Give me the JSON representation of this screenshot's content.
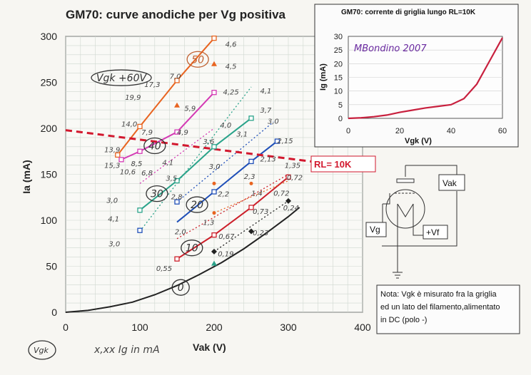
{
  "chart_data": [
    {
      "type": "line",
      "title": "GM70: curve anodiche per Vg positiva",
      "xlabel": "Vak (V)",
      "ylabel": "Ia (mA)",
      "xlim": [
        0,
        400
      ],
      "ylim": [
        0,
        300
      ],
      "x_ticks": [
        "0",
        "100",
        "200",
        "300",
        "400"
      ],
      "y_ticks": [
        "0",
        "50",
        "100",
        "150",
        "200",
        "250",
        "300"
      ],
      "grid": true,
      "series": [
        {
          "name": "0",
          "color": "#222222",
          "style": "solid",
          "x": [
            0,
            30,
            60,
            90,
            120,
            150,
            180,
            210,
            240,
            270,
            300,
            315
          ],
          "y": [
            0,
            2,
            6,
            11,
            19,
            29,
            41,
            54,
            69,
            86,
            104,
            114
          ]
        },
        {
          "name": "10",
          "color": "#cc1f2a",
          "style": "solid",
          "x": [
            150,
            200,
            250,
            300
          ],
          "y": [
            58,
            84,
            114,
            147
          ]
        },
        {
          "name": "20",
          "color": "#1f4fb8",
          "style": "solid",
          "x": [
            150,
            200,
            250,
            285
          ],
          "y": [
            98,
            131,
            164,
            186
          ]
        },
        {
          "name": "30",
          "color": "#2aa38a",
          "style": "solid",
          "x": [
            100,
            150,
            200,
            250
          ],
          "y": [
            111,
            143,
            180,
            211
          ]
        },
        {
          "name": "40",
          "color": "#d43ab4",
          "style": "solid",
          "x": [
            75,
            100,
            150,
            200
          ],
          "y": [
            166,
            175,
            196,
            239
          ]
        },
        {
          "name": "50",
          "color": "#e86420",
          "style": "solid",
          "x": [
            70,
            100,
            150,
            200
          ],
          "y": [
            171,
            202,
            252,
            298
          ]
        },
        {
          "name": "",
          "color": "#2aa38a",
          "style": "dotted",
          "x": [
            100,
            250
          ],
          "y": [
            88,
            245
          ]
        },
        {
          "name": "",
          "color": "#1f4fb8",
          "style": "dotted",
          "x": [
            150,
            280
          ],
          "y": [
            120,
            207
          ]
        },
        {
          "name": "",
          "color": "#cc1f2a",
          "style": "dotted",
          "x": [
            150,
            300
          ],
          "y": [
            80,
            150
          ]
        },
        {
          "name": "",
          "color": "#222222",
          "style": "dotted",
          "x": [
            200,
            300
          ],
          "y": [
            66,
            121
          ]
        },
        {
          "name": "",
          "color": "#d43ab4",
          "style": "dotted",
          "x": [
            100,
            200
          ],
          "y": [
            140,
            200
          ]
        },
        {
          "name": "",
          "color": "#e86420",
          "style": "dotted",
          "x": [
            200,
            300
          ],
          "y": [
            108,
            143
          ]
        }
      ],
      "load_line": {
        "label": "RL= 10K",
        "color": "#d2182e",
        "x": [
          0,
          340
        ],
        "y": [
          198,
          163
        ]
      },
      "markers": [
        {
          "color": "#e86420",
          "shape": "square",
          "x": [
            70,
            100,
            150,
            200
          ],
          "y": [
            171,
            202,
            252,
            298
          ]
        },
        {
          "color": "#d43ab4",
          "shape": "square",
          "x": [
            75,
            100,
            150,
            200
          ],
          "y": [
            166,
            175,
            196,
            239
          ]
        },
        {
          "color": "#2aa38a",
          "shape": "square",
          "x": [
            100,
            150,
            200,
            250
          ],
          "y": [
            111,
            143,
            180,
            211
          ]
        },
        {
          "color": "#1f4fb8",
          "shape": "square",
          "x": [
            100,
            150,
            200,
            250,
            285
          ],
          "y": [
            89,
            120,
            131,
            164,
            186
          ]
        },
        {
          "color": "#cc1f2a",
          "shape": "square",
          "x": [
            150,
            200,
            250,
            300
          ],
          "y": [
            58,
            84,
            114,
            147
          ]
        },
        {
          "color": "#222222",
          "shape": "diamond",
          "x": [
            200,
            250,
            300
          ],
          "y": [
            66,
            88,
            121
          ]
        },
        {
          "color": "#e86420",
          "shape": "triangle",
          "x": [
            200,
            150
          ],
          "y": [
            270,
            225
          ]
        },
        {
          "color": "#2aa38a",
          "shape": "triangle",
          "x": [
            200
          ],
          "y": [
            53
          ]
        },
        {
          "color": "#e86420",
          "shape": "circle",
          "x": [
            200,
            200,
            250
          ],
          "y": [
            108,
            140,
            140
          ]
        }
      ],
      "annotations": [
        {
          "text": "50",
          "x": 178,
          "y": 275,
          "circled": true,
          "color": "#c06030"
        },
        {
          "text": "40",
          "x": 120,
          "y": 181,
          "circled": true,
          "color": "#333"
        },
        {
          "text": "30",
          "x": 123,
          "y": 129,
          "circled": true,
          "color": "#333"
        },
        {
          "text": "20",
          "x": 177,
          "y": 117,
          "circled": true,
          "color": "#333"
        },
        {
          "text": "10",
          "x": 170,
          "y": 70,
          "circled": true,
          "color": "#333"
        },
        {
          "text": "0",
          "x": 155,
          "y": 27,
          "circled": true,
          "color": "#333"
        },
        {
          "text": "Vgk +60V",
          "x": 75,
          "y": 255,
          "circled": true,
          "color": "#333"
        },
        {
          "text": "4,6",
          "x": 215,
          "y": 292,
          "circled": false,
          "color": "#444"
        },
        {
          "text": "4,5",
          "x": 215,
          "y": 268,
          "circled": false,
          "color": "#444"
        },
        {
          "text": "7,0",
          "x": 140,
          "y": 257,
          "circled": false,
          "color": "#444"
        },
        {
          "text": "17,3",
          "x": 106,
          "y": 248,
          "circled": false,
          "color": "#444"
        },
        {
          "text": "19,9",
          "x": 80,
          "y": 234,
          "circled": false,
          "color": "#444"
        },
        {
          "text": "5,9",
          "x": 160,
          "y": 222,
          "circled": false,
          "color": "#444"
        },
        {
          "text": "4,25",
          "x": 212,
          "y": 240,
          "circled": false,
          "color": "#444"
        },
        {
          "text": "4,1",
          "x": 262,
          "y": 241,
          "circled": false,
          "color": "#444"
        },
        {
          "text": "3,7",
          "x": 262,
          "y": 220,
          "circled": false,
          "color": "#444"
        },
        {
          "text": "14,0",
          "x": 75,
          "y": 205,
          "circled": false,
          "color": "#444"
        },
        {
          "text": "7,9",
          "x": 102,
          "y": 196,
          "circled": false,
          "color": "#444"
        },
        {
          "text": "4,9",
          "x": 150,
          "y": 196,
          "circled": false,
          "color": "#444"
        },
        {
          "text": "4,0",
          "x": 208,
          "y": 204,
          "circled": false,
          "color": "#444"
        },
        {
          "text": "3,6",
          "x": 185,
          "y": 186,
          "circled": false,
          "color": "#444"
        },
        {
          "text": "3,1",
          "x": 230,
          "y": 194,
          "circled": false,
          "color": "#444"
        },
        {
          "text": "3,0",
          "x": 272,
          "y": 208,
          "circled": false,
          "color": "#444"
        },
        {
          "text": "13,9",
          "x": 52,
          "y": 177,
          "circled": false,
          "color": "#444"
        },
        {
          "text": "15,3",
          "x": 52,
          "y": 160,
          "circled": false,
          "color": "#444"
        },
        {
          "text": "8,5",
          "x": 88,
          "y": 162,
          "circled": false,
          "color": "#444"
        },
        {
          "text": "6,8",
          "x": 102,
          "y": 152,
          "circled": false,
          "color": "#444"
        },
        {
          "text": "10,6",
          "x": 73,
          "y": 153,
          "circled": false,
          "color": "#444"
        },
        {
          "text": "4,1",
          "x": 130,
          "y": 163,
          "circled": false,
          "color": "#444"
        },
        {
          "text": "3,5",
          "x": 135,
          "y": 146,
          "circled": false,
          "color": "#444"
        },
        {
          "text": "3,0",
          "x": 193,
          "y": 159,
          "circled": false,
          "color": "#444"
        },
        {
          "text": "2,3",
          "x": 240,
          "y": 148,
          "circled": false,
          "color": "#444"
        },
        {
          "text": "2,15",
          "x": 285,
          "y": 187,
          "circled": false,
          "color": "#444"
        },
        {
          "text": "2,13",
          "x": 262,
          "y": 167,
          "circled": false,
          "color": "#444"
        },
        {
          "text": "1,35",
          "x": 295,
          "y": 160,
          "circled": false,
          "color": "#444"
        },
        {
          "text": "3,0",
          "x": 55,
          "y": 122,
          "circled": false,
          "color": "#444"
        },
        {
          "text": "2,8",
          "x": 142,
          "y": 126,
          "circled": false,
          "color": "#444"
        },
        {
          "text": "2,2",
          "x": 205,
          "y": 129,
          "circled": false,
          "color": "#444"
        },
        {
          "text": "1,4",
          "x": 250,
          "y": 130,
          "circled": false,
          "color": "#444"
        },
        {
          "text": "0,72",
          "x": 298,
          "y": 147,
          "circled": false,
          "color": "#444"
        },
        {
          "text": "0,72",
          "x": 280,
          "y": 130,
          "circled": false,
          "color": "#444"
        },
        {
          "text": "4,1",
          "x": 57,
          "y": 102,
          "circled": false,
          "color": "#444"
        },
        {
          "text": "2,0",
          "x": 147,
          "y": 88,
          "circled": false,
          "color": "#444"
        },
        {
          "text": "1,3",
          "x": 185,
          "y": 98,
          "circled": false,
          "color": "#444"
        },
        {
          "text": "0,73",
          "x": 252,
          "y": 110,
          "circled": false,
          "color": "#444"
        },
        {
          "text": "0,24",
          "x": 293,
          "y": 114,
          "circled": false,
          "color": "#444"
        },
        {
          "text": "3,0",
          "x": 58,
          "y": 75,
          "circled": false,
          "color": "#444"
        },
        {
          "text": "0,67",
          "x": 206,
          "y": 83,
          "circled": false,
          "color": "#444"
        },
        {
          "text": "0,23",
          "x": 252,
          "y": 87,
          "circled": false,
          "color": "#444"
        },
        {
          "text": "0,55",
          "x": 122,
          "y": 48,
          "circled": false,
          "color": "#444"
        },
        {
          "text": "0,19",
          "x": 205,
          "y": 64,
          "circled": false,
          "color": "#444"
        }
      ]
    },
    {
      "type": "line",
      "title": "GM70: corrente di griglia lungo RL=10K",
      "xlabel": "Vgk   (V)",
      "ylabel": "Ig (mA)",
      "xlim": [
        0,
        60
      ],
      "ylim": [
        0,
        30
      ],
      "x_ticks": [
        "0",
        "20",
        "40",
        "60"
      ],
      "y_ticks": [
        "0",
        "5",
        "10",
        "15",
        "20",
        "25",
        "30"
      ],
      "grid": true,
      "series": [
        {
          "name": "",
          "color": "#c8203e",
          "x": [
            0,
            5,
            10,
            15,
            20,
            25,
            30,
            35,
            40,
            45,
            50,
            55,
            60
          ],
          "y": [
            0,
            0.2,
            0.6,
            1.2,
            2.2,
            3.0,
            3.8,
            4.4,
            5.0,
            7.2,
            12.5,
            21.0,
            29.5
          ]
        }
      ],
      "annotation": "MBondino 2007"
    }
  ],
  "labels": {
    "vgk_circle": "Vgk",
    "legend_note": "x,xx  Ig in mA"
  },
  "schematic": {
    "vak": "Vak",
    "vg": "Vg",
    "vf": "+Vf"
  },
  "note": {
    "lines": [
      "Nota: Vgk è misurato fra la griglia",
      "ed un lato del filamento,alimentato",
      "in DC (polo -)"
    ]
  }
}
